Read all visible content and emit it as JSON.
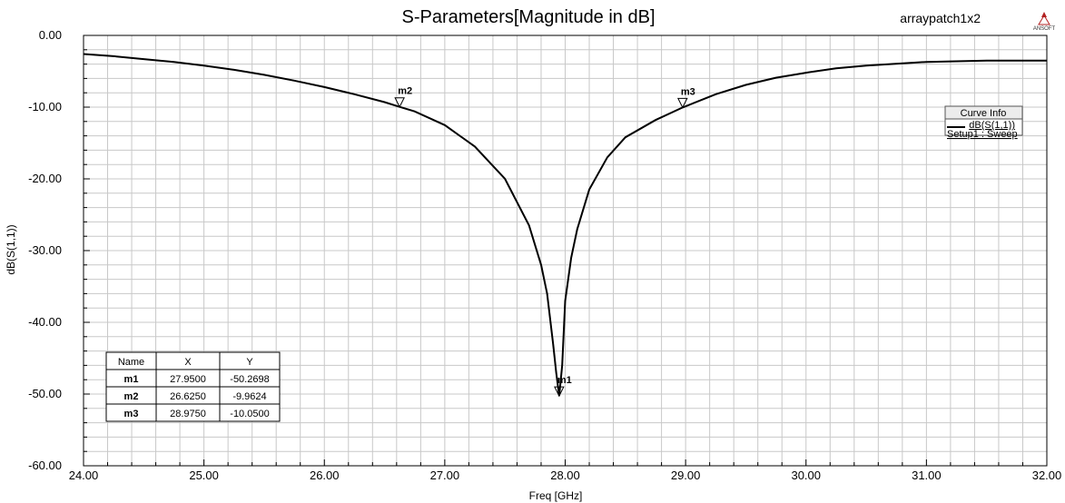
{
  "project_name": "arraypatch1x2",
  "logo": {
    "text": "ANSOFT",
    "color": "#b22222"
  },
  "chart_data": {
    "type": "line",
    "title": "S-Parameters[Magnitude in dB]",
    "xlabel": "Freq [GHz]",
    "ylabel": "dB(S(1,1))",
    "xlim": [
      24.0,
      32.0
    ],
    "ylim": [
      -60.0,
      0.0
    ],
    "x_ticks": [
      "24.00",
      "25.00",
      "26.00",
      "27.00",
      "28.00",
      "29.00",
      "30.00",
      "31.00",
      "32.00"
    ],
    "y_ticks": [
      "0.00",
      "-10.00",
      "-20.00",
      "-30.00",
      "-40.00",
      "-50.00",
      "-60.00"
    ],
    "grid": true,
    "legend_position": "top-right",
    "series": [
      {
        "name": "dB(S(1,1))",
        "setup": "Setup1 : Sweep",
        "color": "#000000",
        "x": [
          24.0,
          24.25,
          24.5,
          24.75,
          25.0,
          25.25,
          25.5,
          25.75,
          26.0,
          26.25,
          26.5,
          26.625,
          26.75,
          27.0,
          27.25,
          27.5,
          27.7,
          27.8,
          27.85,
          27.9,
          27.925,
          27.95,
          27.975,
          28.0,
          28.05,
          28.1,
          28.2,
          28.35,
          28.5,
          28.75,
          28.975,
          29.25,
          29.5,
          29.75,
          30.0,
          30.25,
          30.5,
          31.0,
          31.5,
          32.0
        ],
        "y": [
          -2.6,
          -2.9,
          -3.3,
          -3.7,
          -4.2,
          -4.8,
          -5.5,
          -6.3,
          -7.2,
          -8.2,
          -9.3,
          -9.9624,
          -10.6,
          -12.5,
          -15.5,
          -20.0,
          -26.5,
          -32.0,
          -36.0,
          -43.0,
          -47.0,
          -50.2698,
          -46.0,
          -37.0,
          -31.0,
          -27.0,
          -21.5,
          -17.0,
          -14.2,
          -11.8,
          -10.05,
          -8.2,
          -6.9,
          -5.9,
          -5.2,
          -4.6,
          -4.2,
          -3.7,
          -3.5,
          -3.5
        ]
      }
    ],
    "markers": [
      {
        "name": "m1",
        "x": 27.95,
        "y": -50.2698
      },
      {
        "name": "m2",
        "x": 26.625,
        "y": -9.9624
      },
      {
        "name": "m3",
        "x": 28.975,
        "y": -10.05
      }
    ]
  },
  "legend": {
    "title": "Curve Info",
    "trace_label": "dB(S(1,1))",
    "setup_label": "Setup1 : Sweep"
  },
  "marker_table": {
    "headers": [
      "Name",
      "X",
      "Y"
    ],
    "rows": [
      [
        "m1",
        "27.9500",
        "-50.2698"
      ],
      [
        "m2",
        "26.6250",
        "-9.9624"
      ],
      [
        "m3",
        "28.9750",
        "-10.0500"
      ]
    ]
  }
}
